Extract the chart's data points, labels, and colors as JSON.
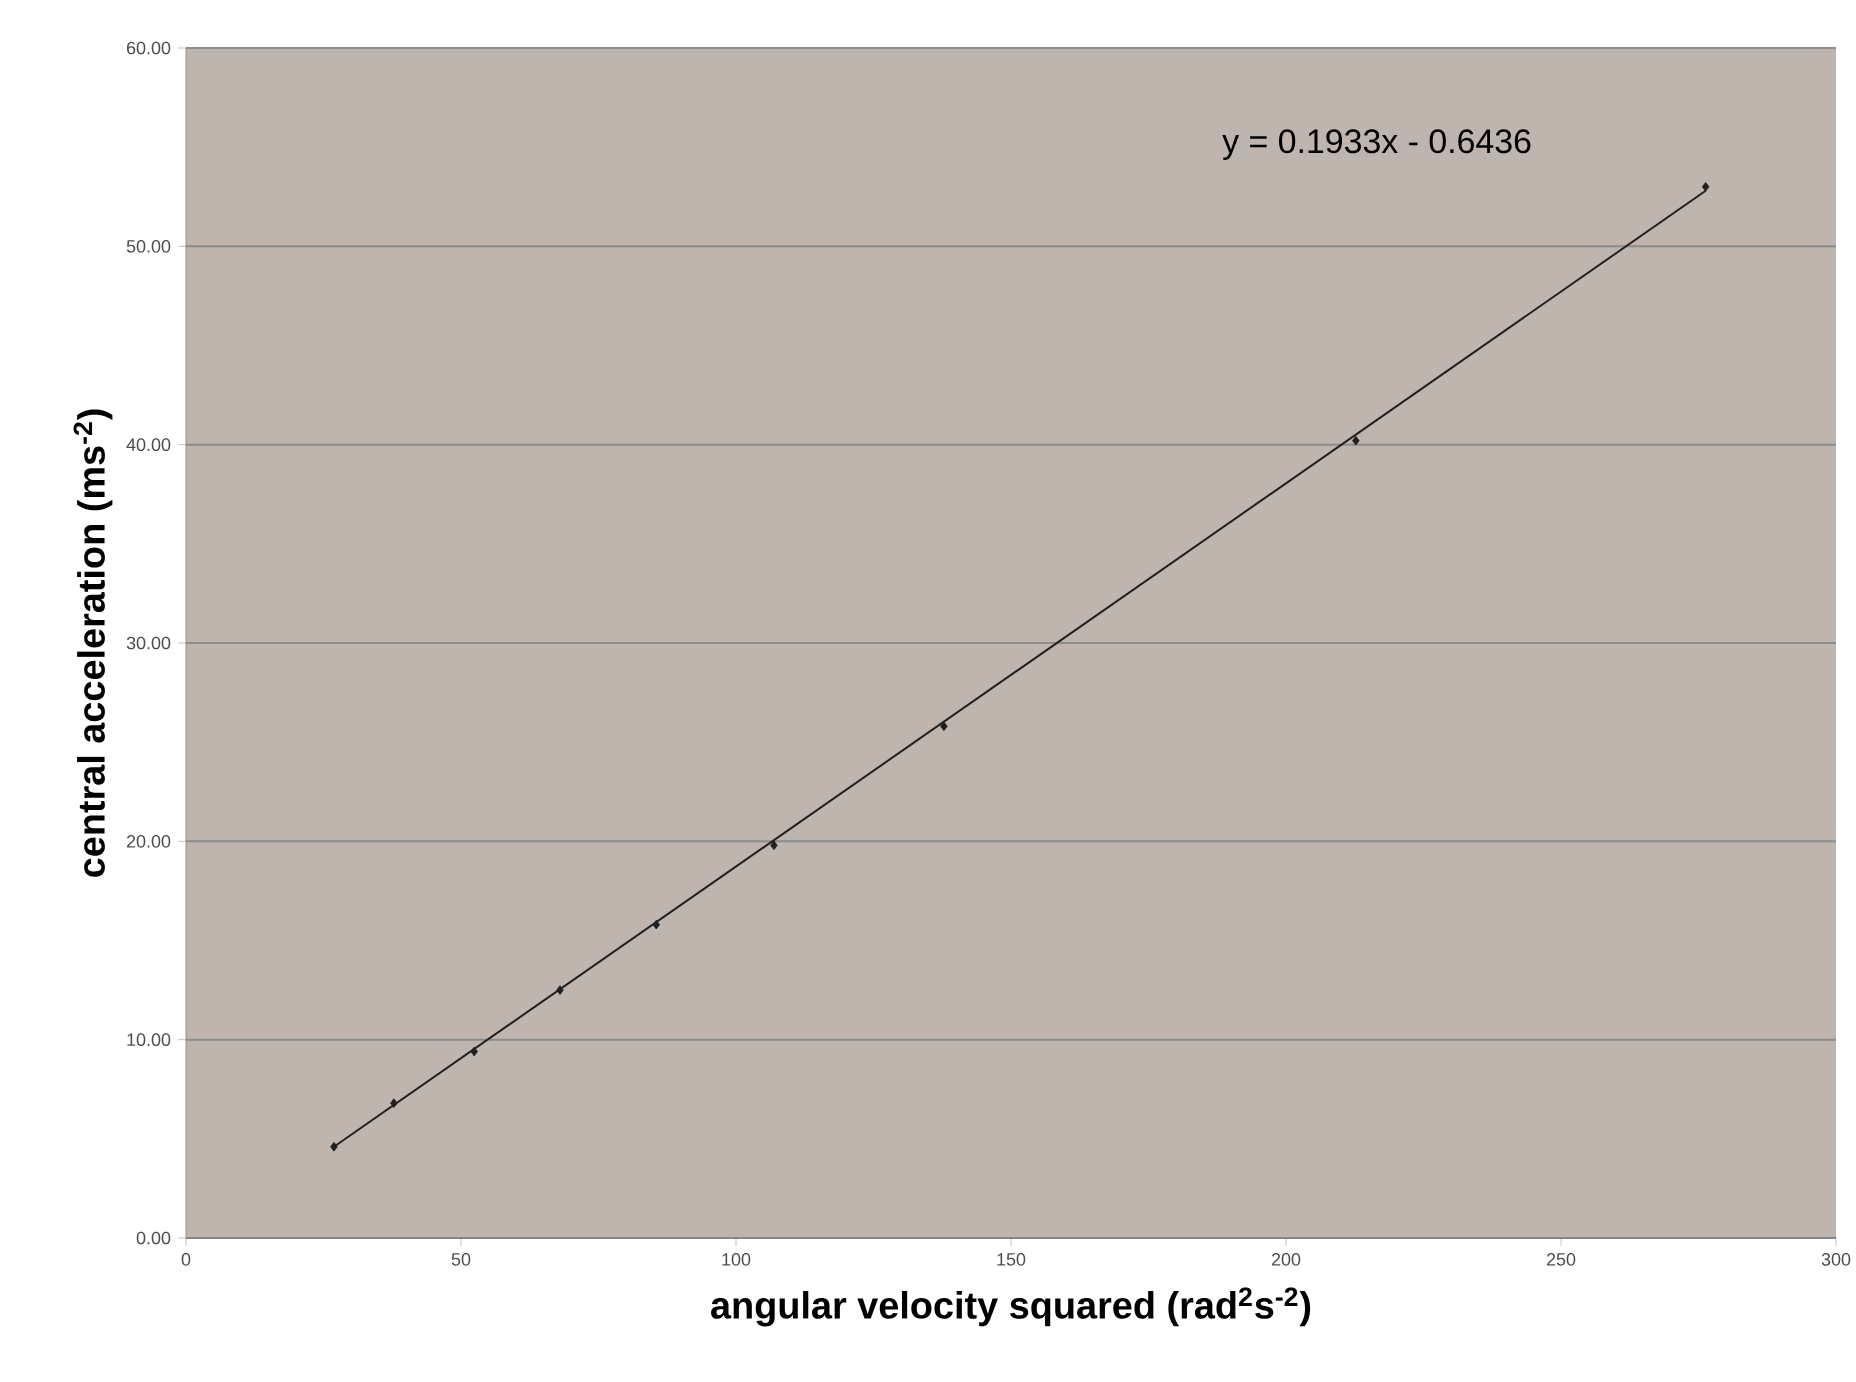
{
  "chart_data": {
    "type": "scatter",
    "xlabel": "angular velocity squared (rad$^{2}$s$^{-2}$)",
    "ylabel": "central acceleration (ms$^{-2}$)",
    "annotations": [
      "y = 0.1933x - 0.6436"
    ],
    "series": [
      {
        "color": "#202020",
        "marker": "diamond",
        "x": [
          26.9,
          37.8,
          52.4,
          68,
          85.5,
          106.9,
          137.8,
          212.7,
          276.3
        ],
        "values": [
          4.6,
          6.8,
          9.4,
          12.5,
          15.8,
          19.8,
          25.8,
          40.2,
          53.0
        ]
      },
      {
        "type": "line",
        "color": "#202020",
        "marker": "none",
        "line_style": "solid",
        "x": [
          26.9,
          276.3
        ],
        "values": [
          4.6,
          52.8
        ]
      }
    ],
    "xlim": [
      0,
      300
    ],
    "xticks": [
      0,
      50,
      100,
      150,
      200,
      250,
      300
    ],
    "ylim": [
      0,
      60
    ],
    "yticks": [
      {
        "value": 0,
        "label": "0.00"
      },
      {
        "value": 10,
        "label": "10.00"
      },
      {
        "value": 20,
        "label": "20.00"
      },
      {
        "value": 30,
        "label": "30.00"
      },
      {
        "value": 40,
        "label": "40.00"
      },
      {
        "value": 50,
        "label": "50.00"
      },
      {
        "value": 60,
        "label": "60.00"
      }
    ],
    "grid": "y"
  }
}
